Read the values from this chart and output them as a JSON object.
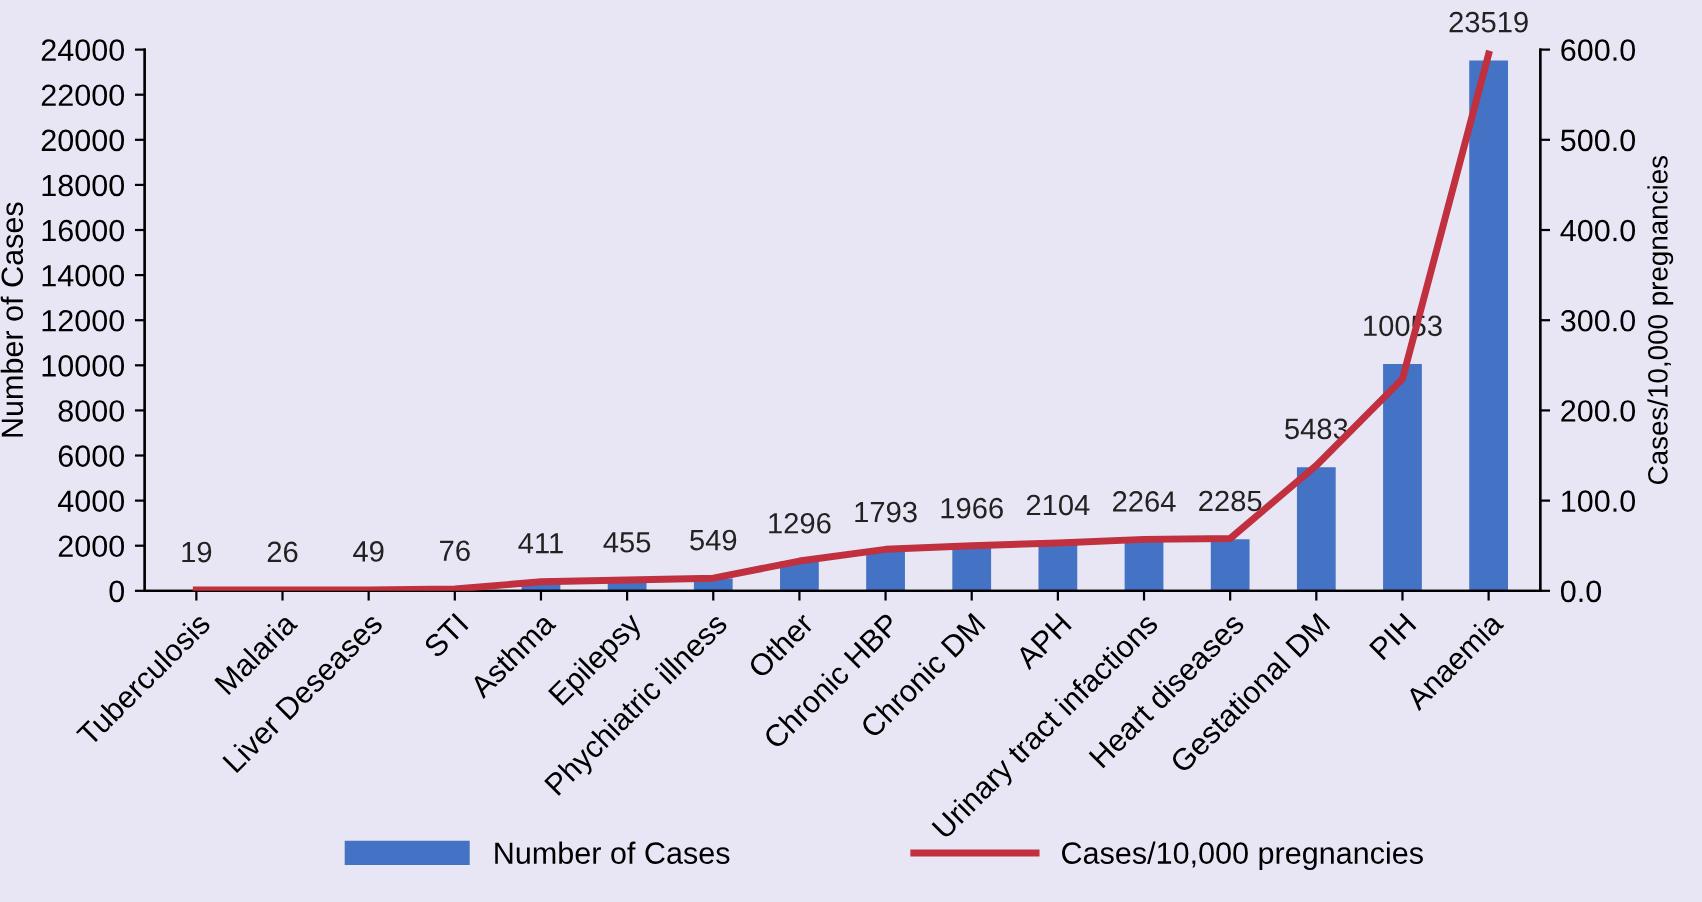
{
  "chart_data": {
    "type": "bar",
    "categories": [
      "Tuberculosis",
      "Malaria",
      "Liver Deseases",
      "STI",
      "Asthma",
      "Epilepsy",
      "Phychiatric illness",
      "Other",
      "Chronic HBP",
      "Chronic DM",
      "APH",
      "Urinary tract infactions",
      "Heart diseases",
      "Gestational DM",
      "PIH",
      "Anaemia"
    ],
    "series": [
      {
        "name": "Number of Cases",
        "color": "#4472c4",
        "values": [
          19,
          26,
          49,
          76,
          411,
          455,
          549,
          1296,
          1793,
          1966,
          2104,
          2264,
          2285,
          5483,
          10053,
          23519
        ],
        "data_labels": true
      },
      {
        "name": "Cases/10,000 pregnancies",
        "type": "line",
        "axis": "y2",
        "color": "#c0303f",
        "marker": "none",
        "values": [
          1,
          1,
          1,
          2,
          10,
          12,
          14,
          33,
          46,
          50,
          53,
          57,
          58,
          139,
          235,
          595
        ]
      }
    ],
    "ylabel": "Number of Cases",
    "y2label": "Cases/10,000 pregnancies",
    "ylim": [
      0,
      24000
    ],
    "yticks": [
      0,
      2000,
      4000,
      6000,
      8000,
      10000,
      12000,
      14000,
      16000,
      18000,
      20000,
      22000,
      24000
    ],
    "y2lim": [
      0,
      600
    ],
    "y2ticks": [
      {
        "value": 0,
        "label": "0.0"
      },
      {
        "value": 100,
        "label": "100.0"
      },
      {
        "value": 200,
        "label": "200.0"
      },
      {
        "value": 300,
        "label": "300.0"
      },
      {
        "value": 400,
        "label": "400.0"
      },
      {
        "value": 500,
        "label": "500.0"
      },
      {
        "value": 600,
        "label": "600.0"
      }
    ],
    "grid": false,
    "legend": "bottom"
  }
}
